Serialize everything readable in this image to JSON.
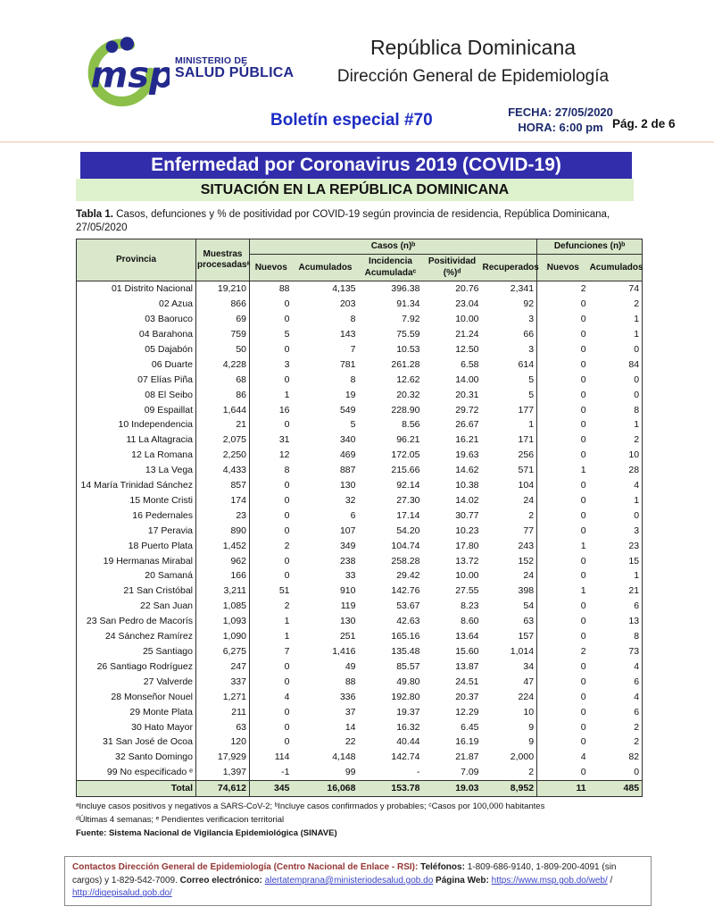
{
  "colors": {
    "banner_blue": "#312dab",
    "banner_green": "#def1cd",
    "table_header_green": "#d9e7cb",
    "navy": "#23298c",
    "logo_green": "#8cc04a",
    "bulletin_blue": "#1c2cc4",
    "datetime_navy": "#1b2a6b",
    "maroon": "#943634",
    "link_blue": "#3b44c8",
    "border_dark": "#2f2f2f"
  },
  "header": {
    "logo": {
      "acronym": "msp",
      "line1": "MINISTERIO DE",
      "line2": "SALUD PÚBLICA"
    },
    "title": "República Dominicana",
    "subtitle": "Dirección General de Epidemiología",
    "bulletin": "Boletín especial #70",
    "date": "FECHA: 27/05/2020",
    "time": "HORA: 6:00 pm",
    "page": "Pág. 2 de 6"
  },
  "banners": {
    "main": "Enfermedad por Coronavirus 2019 (COVID-19)",
    "sub": "SITUACIÓN EN LA REPÚBLICA DOMINICANA"
  },
  "caption": {
    "label": "Tabla 1.",
    "text": "Casos, defunciones y % de positividad por COVID-19 según provincia de residencia, República Dominicana, 27/05/2020"
  },
  "table": {
    "col_province": "Provincia",
    "col_samples": "Muestras procesadasᵃ",
    "group_cases": "Casos (n)ᵇ",
    "group_deaths": "Defunciones (n)ᵇ",
    "sub_headers": [
      "Nuevos",
      "Acumulados",
      "Incidencia Acumuladaᶜ",
      "Positividad (%)ᵈ",
      "Recuperados",
      "Nuevos",
      "Acumulados"
    ],
    "rows": [
      [
        "01 Distrito Nacional",
        "19,210",
        "88",
        "4,135",
        "396.38",
        "20.76",
        "2,341",
        "2",
        "74"
      ],
      [
        "02 Azua",
        "866",
        "0",
        "203",
        "91.34",
        "23.04",
        "92",
        "0",
        "2"
      ],
      [
        "03 Baoruco",
        "69",
        "0",
        "8",
        "7.92",
        "10.00",
        "3",
        "0",
        "1"
      ],
      [
        "04 Barahona",
        "759",
        "5",
        "143",
        "75.59",
        "21.24",
        "66",
        "0",
        "1"
      ],
      [
        "05 Dajabón",
        "50",
        "0",
        "7",
        "10.53",
        "12.50",
        "3",
        "0",
        "0"
      ],
      [
        "06 Duarte",
        "4,228",
        "3",
        "781",
        "261.28",
        "6.58",
        "614",
        "0",
        "84"
      ],
      [
        "07 Elías Piña",
        "68",
        "0",
        "8",
        "12.62",
        "14.00",
        "5",
        "0",
        "0"
      ],
      [
        "08 El Seibo",
        "86",
        "1",
        "19",
        "20.32",
        "20.31",
        "5",
        "0",
        "0"
      ],
      [
        "09 Espaillat",
        "1,644",
        "16",
        "549",
        "228.90",
        "29.72",
        "177",
        "0",
        "8"
      ],
      [
        "10 Independencia",
        "21",
        "0",
        "5",
        "8.56",
        "26.67",
        "1",
        "0",
        "1"
      ],
      [
        "11 La Altagracia",
        "2,075",
        "31",
        "340",
        "96.21",
        "16.21",
        "171",
        "0",
        "2"
      ],
      [
        "12 La Romana",
        "2,250",
        "12",
        "469",
        "172.05",
        "19.63",
        "256",
        "0",
        "10"
      ],
      [
        "13 La Vega",
        "4,433",
        "8",
        "887",
        "215.66",
        "14.62",
        "571",
        "1",
        "28"
      ],
      [
        "14 María Trinidad Sánchez",
        "857",
        "0",
        "130",
        "92.14",
        "10.38",
        "104",
        "0",
        "4"
      ],
      [
        "15 Monte Cristi",
        "174",
        "0",
        "32",
        "27.30",
        "14.02",
        "24",
        "0",
        "1"
      ],
      [
        "16 Pedernales",
        "23",
        "0",
        "6",
        "17.14",
        "30.77",
        "2",
        "0",
        "0"
      ],
      [
        "17 Peravia",
        "890",
        "0",
        "107",
        "54.20",
        "10.23",
        "77",
        "0",
        "3"
      ],
      [
        "18 Puerto Plata",
        "1,452",
        "2",
        "349",
        "104.74",
        "17.80",
        "243",
        "1",
        "23"
      ],
      [
        "19 Hermanas Mirabal",
        "962",
        "0",
        "238",
        "258.28",
        "13.72",
        "152",
        "0",
        "15"
      ],
      [
        "20 Samaná",
        "166",
        "0",
        "33",
        "29.42",
        "10.00",
        "24",
        "0",
        "1"
      ],
      [
        "21 San Cristóbal",
        "3,211",
        "51",
        "910",
        "142.76",
        "27.55",
        "398",
        "1",
        "21"
      ],
      [
        "22 San Juan",
        "1,085",
        "2",
        "119",
        "53.67",
        "8.23",
        "54",
        "0",
        "6"
      ],
      [
        "23 San Pedro de Macorís",
        "1,093",
        "1",
        "130",
        "42.63",
        "8.60",
        "63",
        "0",
        "13"
      ],
      [
        "24 Sánchez Ramírez",
        "1,090",
        "1",
        "251",
        "165.16",
        "13.64",
        "157",
        "0",
        "8"
      ],
      [
        "25 Santiago",
        "6,275",
        "7",
        "1,416",
        "135.48",
        "15.60",
        "1,014",
        "2",
        "73"
      ],
      [
        "26 Santiago Rodríguez",
        "247",
        "0",
        "49",
        "85.57",
        "13.87",
        "34",
        "0",
        "4"
      ],
      [
        "27 Valverde",
        "337",
        "0",
        "88",
        "49.80",
        "24.51",
        "47",
        "0",
        "6"
      ],
      [
        "28 Monseñor Nouel",
        "1,271",
        "4",
        "336",
        "192.80",
        "20.37",
        "224",
        "0",
        "4"
      ],
      [
        "29 Monte Plata",
        "211",
        "0",
        "37",
        "19.37",
        "12.29",
        "10",
        "0",
        "6"
      ],
      [
        "30 Hato Mayor",
        "63",
        "0",
        "14",
        "16.32",
        "6.45",
        "9",
        "0",
        "2"
      ],
      [
        "31 San José de Ocoa",
        "120",
        "0",
        "22",
        "40.44",
        "16.19",
        "9",
        "0",
        "2"
      ],
      [
        "32 Santo Domingo",
        "17,929",
        "114",
        "4,148",
        "142.74",
        "21.87",
        "2,000",
        "4",
        "82"
      ],
      [
        "99 No especificado ᵉ",
        "1,397",
        "-1",
        "99",
        "-",
        "7.09",
        "2",
        "0",
        "0"
      ]
    ],
    "total_row": [
      "Total",
      "74,612",
      "345",
      "16,068",
      "153.78",
      "19.03",
      "8,952",
      "11",
      "485"
    ]
  },
  "footnotes": {
    "line1": "ᵃIncluye casos positivos y negativos a SARS-CoV-2; ᵇIncluye casos confirmados y probables; ᶜCasos por 100,000 habitantes",
    "line2": "ᵈÚltimas 4 semanas; ᵉ Pendientes verificacion territorial",
    "source": "Fuente: Sistema Nacional de Vigilancia Epidemiológica (SINAVE)"
  },
  "footer": {
    "contacts_label": "Contactos Dirección General de Epidemiología (Centro Nacional de Enlace - RSI):",
    "phones_label": "Teléfonos:",
    "phones": "1-809-686-9140, 1-809-200-4091 (sin cargos) y 1-829-542-7009.",
    "email_label": "Correo electrónico:",
    "email": "alertatemprana@ministeriodesalud.gob.do",
    "web_label": "Página Web:",
    "web1": "https://www.msp.gob.do/web/",
    "web_sep": "/",
    "web2": "http://digepisalud.gob.do/"
  }
}
